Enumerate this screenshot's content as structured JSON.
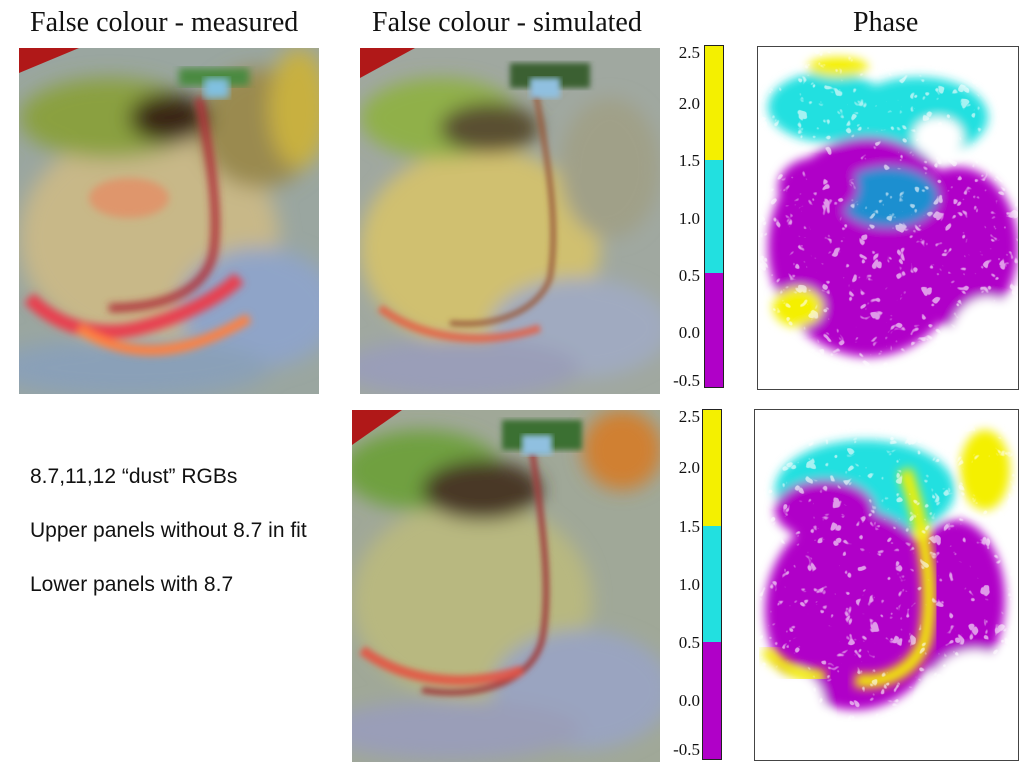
{
  "headings": {
    "measured": "False colour - measured",
    "simulated": "False colour - simulated",
    "phase": "Phase"
  },
  "colorbar": {
    "ticks": [
      "2.5",
      "2.0",
      "1.5",
      "1.0",
      "0.5",
      "0.0",
      "-0.5"
    ],
    "segments": [
      {
        "from": 1.5,
        "to": 2.5,
        "color": "#f4f000"
      },
      {
        "from": 0.5,
        "to": 1.5,
        "color": "#22e0e0"
      },
      {
        "from": -0.5,
        "to": 0.5,
        "color": "#b000c8"
      }
    ]
  },
  "notes": {
    "line1": "8.7,11,12 “dust” RGBs",
    "line2": "Upper panels without 8.7 in fit",
    "line3": "Lower panels with 8.7"
  }
}
